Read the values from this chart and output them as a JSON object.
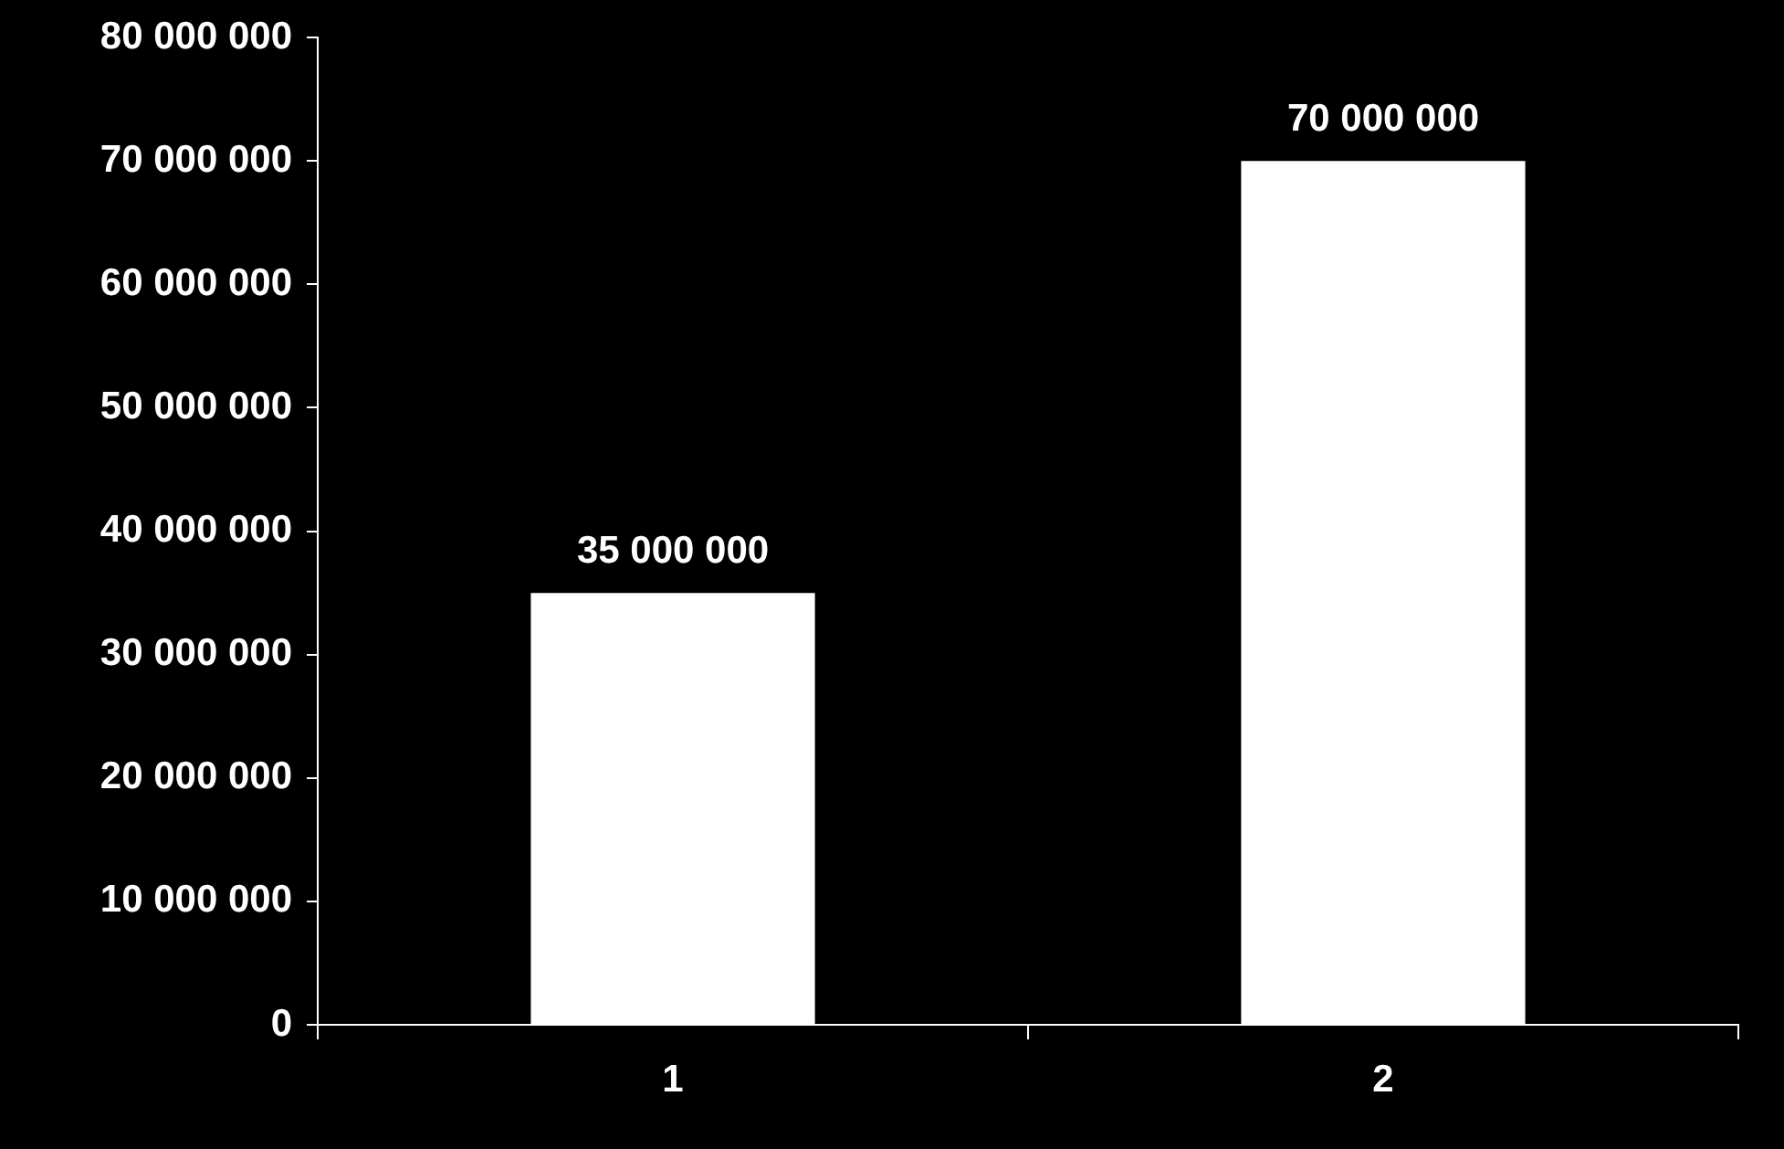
{
  "chart_data": {
    "type": "bar",
    "categories": [
      "1",
      "2"
    ],
    "values": [
      35000000,
      70000000
    ],
    "color": "#ffffff",
    "value_labels": [
      "35 000 000",
      "70 000 000"
    ],
    "ylim": [
      0,
      80000000
    ],
    "yticks": [
      {
        "value": 0,
        "label": "0"
      },
      {
        "value": 10000000,
        "label": "10 000 000"
      },
      {
        "value": 20000000,
        "label": "20 000 000"
      },
      {
        "value": 30000000,
        "label": "30 000 000"
      },
      {
        "value": 40000000,
        "label": "40 000 000"
      },
      {
        "value": 50000000,
        "label": "50 000 000"
      },
      {
        "value": 60000000,
        "label": "60 000 000"
      },
      {
        "value": 70000000,
        "label": "70 000 000"
      },
      {
        "value": 80000000,
        "label": "80 000 000"
      }
    ],
    "grid": false,
    "legend": false
  }
}
